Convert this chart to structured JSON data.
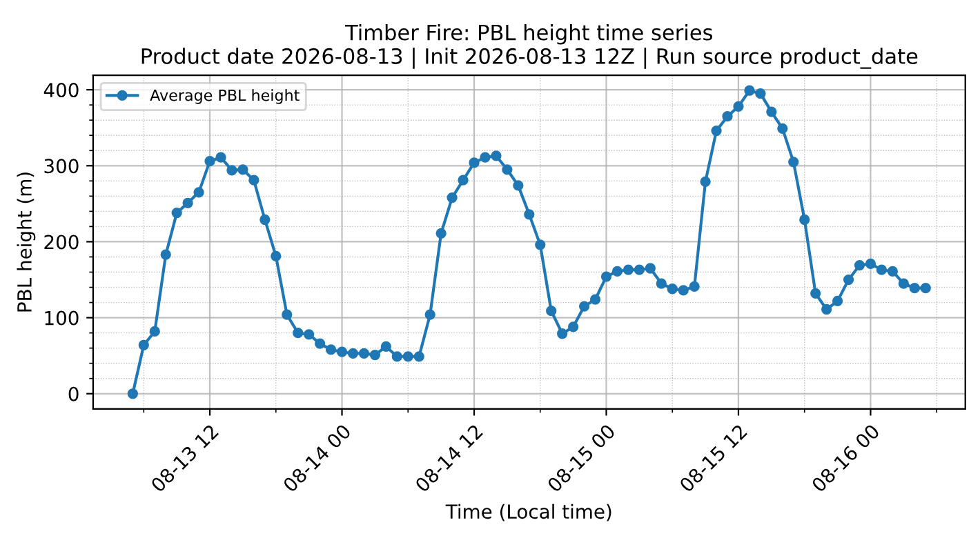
{
  "chart_data": {
    "type": "line",
    "title": "Timber Fire: PBL height time series\nProduct date 2026-08-13 | Init 2026-08-13 12Z | Run source product_date",
    "xlabel": "Time (Local time)",
    "ylabel": "PBL height (m)",
    "x": [
      "2026-08-13T05:00",
      "2026-08-13T06:00",
      "2026-08-13T07:00",
      "2026-08-13T08:00",
      "2026-08-13T09:00",
      "2026-08-13T10:00",
      "2026-08-13T11:00",
      "2026-08-13T12:00",
      "2026-08-13T13:00",
      "2026-08-13T14:00",
      "2026-08-13T15:00",
      "2026-08-13T16:00",
      "2026-08-13T17:00",
      "2026-08-13T18:00",
      "2026-08-13T19:00",
      "2026-08-13T20:00",
      "2026-08-13T21:00",
      "2026-08-13T22:00",
      "2026-08-13T23:00",
      "2026-08-14T00:00",
      "2026-08-14T01:00",
      "2026-08-14T02:00",
      "2026-08-14T03:00",
      "2026-08-14T04:00",
      "2026-08-14T05:00",
      "2026-08-14T06:00",
      "2026-08-14T07:00",
      "2026-08-14T08:00",
      "2026-08-14T09:00",
      "2026-08-14T10:00",
      "2026-08-14T11:00",
      "2026-08-14T12:00",
      "2026-08-14T13:00",
      "2026-08-14T14:00",
      "2026-08-14T15:00",
      "2026-08-14T16:00",
      "2026-08-14T17:00",
      "2026-08-14T18:00",
      "2026-08-14T19:00",
      "2026-08-14T20:00",
      "2026-08-14T21:00",
      "2026-08-14T22:00",
      "2026-08-14T23:00",
      "2026-08-15T00:00",
      "2026-08-15T01:00",
      "2026-08-15T02:00",
      "2026-08-15T03:00",
      "2026-08-15T04:00",
      "2026-08-15T05:00",
      "2026-08-15T06:00",
      "2026-08-15T07:00",
      "2026-08-15T08:00",
      "2026-08-15T09:00",
      "2026-08-15T10:00",
      "2026-08-15T11:00",
      "2026-08-15T12:00",
      "2026-08-15T13:00",
      "2026-08-15T14:00",
      "2026-08-15T15:00",
      "2026-08-15T16:00",
      "2026-08-15T17:00",
      "2026-08-15T18:00",
      "2026-08-15T19:00",
      "2026-08-15T20:00",
      "2026-08-15T21:00",
      "2026-08-15T22:00",
      "2026-08-15T23:00",
      "2026-08-16T00:00",
      "2026-08-16T01:00",
      "2026-08-16T02:00",
      "2026-08-16T03:00",
      "2026-08-16T04:00",
      "2026-08-16T05:00"
    ],
    "series": [
      {
        "name": "Average PBL height",
        "color": "#1f77b4",
        "values": [
          0,
          64,
          82,
          183,
          238,
          251,
          265,
          306,
          311,
          294,
          295,
          281,
          229,
          181,
          104,
          80,
          78,
          66,
          58,
          55,
          53,
          53,
          51,
          62,
          49,
          49,
          49,
          104,
          211,
          258,
          281,
          304,
          311,
          313,
          295,
          274,
          236,
          196,
          109,
          79,
          88,
          115,
          124,
          154,
          161,
          163,
          163,
          165,
          145,
          138,
          136,
          141,
          279,
          346,
          365,
          378,
          399,
          395,
          371,
          349,
          305,
          229,
          132,
          111,
          122,
          150,
          169,
          171,
          163,
          161,
          145,
          139,
          139
        ]
      }
    ],
    "xlim": [
      "2026-08-13T01:24",
      "2026-08-16T08:36"
    ],
    "xticks": [
      {
        "value": "2026-08-13T06:00",
        "label": null
      },
      {
        "value": "2026-08-13T12:00",
        "label": "08-13 12"
      },
      {
        "value": "2026-08-13T18:00",
        "label": null
      },
      {
        "value": "2026-08-14T00:00",
        "label": "08-14 00"
      },
      {
        "value": "2026-08-14T06:00",
        "label": null
      },
      {
        "value": "2026-08-14T12:00",
        "label": "08-14 12"
      },
      {
        "value": "2026-08-14T18:00",
        "label": null
      },
      {
        "value": "2026-08-15T00:00",
        "label": "08-15 00"
      },
      {
        "value": "2026-08-15T06:00",
        "label": null
      },
      {
        "value": "2026-08-15T12:00",
        "label": "08-15 12"
      },
      {
        "value": "2026-08-15T18:00",
        "label": null
      },
      {
        "value": "2026-08-16T00:00",
        "label": "08-16 00"
      },
      {
        "value": "2026-08-16T06:00",
        "label": null
      }
    ],
    "ylim": [
      -20,
      419
    ],
    "yticks": [
      0,
      {
        "value": 20,
        "label": null
      },
      {
        "value": 40,
        "label": null
      },
      {
        "value": 60,
        "label": null
      },
      {
        "value": 80,
        "label": null
      },
      100,
      {
        "value": 120,
        "label": null
      },
      {
        "value": 140,
        "label": null
      },
      {
        "value": 160,
        "label": null
      },
      {
        "value": 180,
        "label": null
      },
      200,
      {
        "value": 220,
        "label": null
      },
      {
        "value": 240,
        "label": null
      },
      {
        "value": 260,
        "label": null
      },
      {
        "value": 280,
        "label": null
      },
      300,
      {
        "value": 320,
        "label": null
      },
      {
        "value": 340,
        "label": null
      },
      {
        "value": 360,
        "label": null
      },
      {
        "value": 380,
        "label": null
      },
      400
    ],
    "grid": true,
    "legend": "top left",
    "marker": "circle",
    "line_style": "solid"
  }
}
